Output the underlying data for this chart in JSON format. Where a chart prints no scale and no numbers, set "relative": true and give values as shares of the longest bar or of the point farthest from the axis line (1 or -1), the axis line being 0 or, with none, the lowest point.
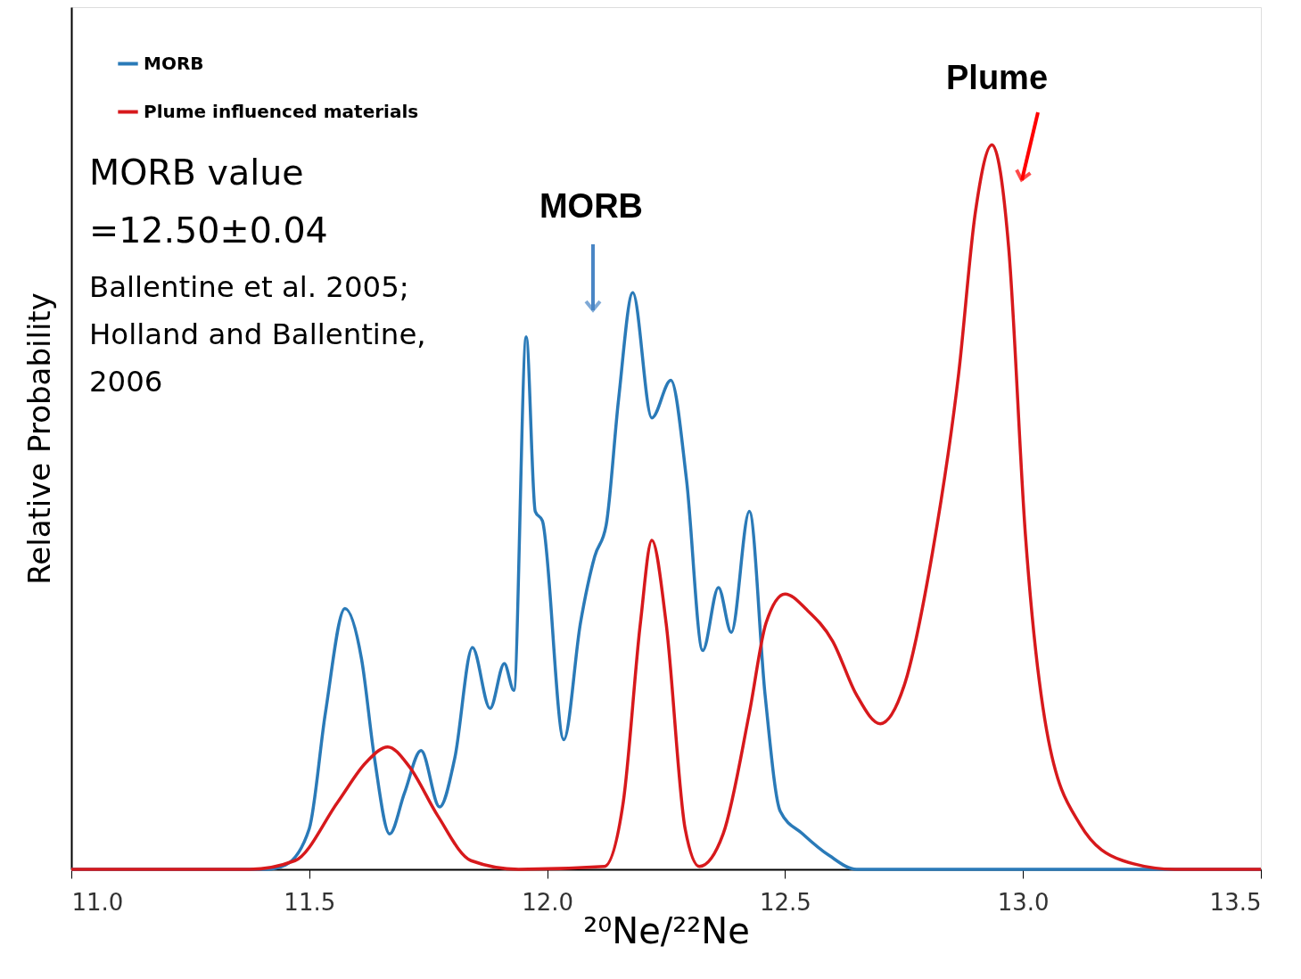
{
  "chart_data": {
    "type": "line",
    "relative": true,
    "xlabel": "²⁰Ne/²²Ne",
    "ylabel": "Relative Probability",
    "xlim": [
      11.0,
      13.5
    ],
    "xticks": [
      {
        "value": 11.0,
        "label": "11.0"
      },
      {
        "value": 11.5,
        "label": "11.5"
      },
      {
        "value": 12.0,
        "label": "12.0"
      },
      {
        "value": 12.5,
        "label": "12.5"
      },
      {
        "value": 13.0,
        "label": "13.0"
      },
      {
        "value": 13.5,
        "label": "13.5"
      }
    ],
    "grid": false,
    "legend": "top left",
    "marker": "none",
    "line_style": "solid",
    "series": [
      {
        "name": "MORB",
        "color": "#2a7ab8",
        "x": [
          11.0,
          11.41,
          11.45,
          11.5,
          11.534,
          11.575,
          11.61,
          11.637,
          11.669,
          11.7,
          11.735,
          11.774,
          11.806,
          11.843,
          11.88,
          11.91,
          11.93,
          11.956,
          11.975,
          11.99,
          12.035,
          12.07,
          12.1,
          12.124,
          12.15,
          12.18,
          12.22,
          12.26,
          12.293,
          12.327,
          12.36,
          12.387,
          12.425,
          12.458,
          12.49,
          12.537,
          12.593,
          12.65,
          13.5
        ],
        "values": [
          0,
          0,
          0.006,
          0.056,
          0.216,
          0.36,
          0.29,
          0.154,
          0.049,
          0.105,
          0.164,
          0.086,
          0.154,
          0.306,
          0.222,
          0.284,
          0.247,
          0.735,
          0.494,
          0.481,
          0.179,
          0.34,
          0.432,
          0.475,
          0.648,
          0.796,
          0.623,
          0.675,
          0.537,
          0.302,
          0.389,
          0.327,
          0.494,
          0.241,
          0.08,
          0.049,
          0.019,
          0,
          0
        ]
      },
      {
        "name": "Plume influenced materials",
        "color": "#d7191c",
        "x": [
          11.0,
          11.375,
          11.47,
          11.56,
          11.62,
          11.665,
          11.71,
          11.77,
          11.84,
          11.94,
          12.12,
          12.16,
          12.196,
          12.22,
          12.25,
          12.29,
          12.32,
          12.37,
          12.425,
          12.46,
          12.5,
          12.546,
          12.6,
          12.65,
          12.7,
          12.75,
          12.81,
          12.865,
          12.9,
          12.935,
          12.97,
          13.005,
          13.05,
          13.12,
          13.21,
          13.32,
          13.5
        ],
        "values": [
          0,
          0,
          0.012,
          0.093,
          0.148,
          0.169,
          0.142,
          0.074,
          0.012,
          0,
          0.004,
          0.093,
          0.34,
          0.454,
          0.34,
          0.056,
          0.004,
          0.049,
          0.216,
          0.34,
          0.38,
          0.358,
          0.315,
          0.241,
          0.201,
          0.253,
          0.438,
          0.685,
          0.907,
          1.0,
          0.858,
          0.463,
          0.191,
          0.062,
          0.012,
          0,
          0
        ]
      }
    ],
    "annotations": [
      "MORB value",
      "=12.50±0.04",
      "Ballentine et al. 2005;",
      "Holland and Ballentine,",
      "2006",
      "MORB",
      "Plume"
    ]
  }
}
